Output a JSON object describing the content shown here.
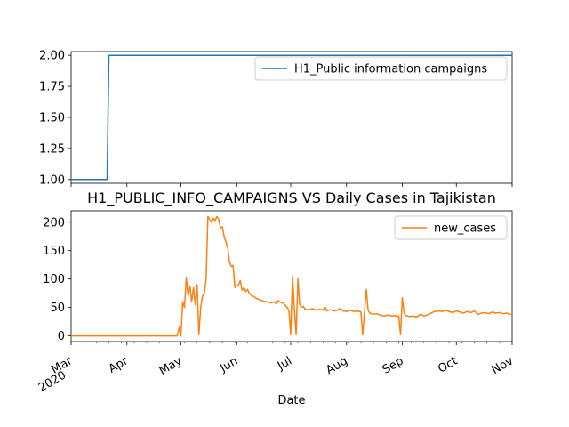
{
  "chart_data": [
    {
      "type": "line",
      "title": "",
      "xlabel": "",
      "ylabel": "",
      "ylim": [
        0.97,
        2.03
      ],
      "yticks": [
        "1.00",
        "1.25",
        "1.50",
        "1.75",
        "2.00"
      ],
      "legend_position": "top-right",
      "grid": false,
      "series": [
        {
          "name": "H1_Public information campaigns",
          "color": "#1f77b4",
          "points": [
            [
              "2020-03-01",
              1
            ],
            [
              "2020-03-21",
              1
            ],
            [
              "2020-03-22",
              2
            ],
            [
              "2020-11-01",
              2
            ]
          ]
        }
      ]
    },
    {
      "type": "line",
      "title": "H1_PUBLIC_INFO_CAMPAIGNS VS Daily Cases in Tajikistan",
      "xlabel": "Date",
      "ylabel": "",
      "ylim": [
        -10,
        220
      ],
      "yticks": [
        "0",
        "50",
        "100",
        "150",
        "200"
      ],
      "x_tick_labels": [
        {
          "date": "2020-03-01",
          "lines": [
            "Mar",
            "2020"
          ]
        },
        {
          "date": "2020-04-01",
          "lines": [
            "Apr"
          ]
        },
        {
          "date": "2020-05-01",
          "lines": [
            "May"
          ]
        },
        {
          "date": "2020-06-01",
          "lines": [
            "Jun"
          ]
        },
        {
          "date": "2020-07-01",
          "lines": [
            "Jul"
          ]
        },
        {
          "date": "2020-08-01",
          "lines": [
            "Aug"
          ]
        },
        {
          "date": "2020-09-01",
          "lines": [
            "Sep"
          ]
        },
        {
          "date": "2020-10-01",
          "lines": [
            "Oct"
          ]
        },
        {
          "date": "2020-11-01",
          "lines": [
            "Nov"
          ]
        }
      ],
      "legend_position": "top-right",
      "grid": false,
      "series": [
        {
          "name": "new_cases",
          "color": "#ff7f0e",
          "points": [
            [
              "2020-03-01",
              0
            ],
            [
              "2020-04-29",
              0
            ],
            [
              "2020-04-30",
              15
            ],
            [
              "2020-05-01",
              0
            ],
            [
              "2020-05-02",
              60
            ],
            [
              "2020-05-03",
              50
            ],
            [
              "2020-05-04",
              103
            ],
            [
              "2020-05-05",
              70
            ],
            [
              "2020-05-06",
              88
            ],
            [
              "2020-05-07",
              60
            ],
            [
              "2020-05-08",
              85
            ],
            [
              "2020-05-09",
              55
            ],
            [
              "2020-05-10",
              90
            ],
            [
              "2020-05-11",
              2
            ],
            [
              "2020-05-12",
              50
            ],
            [
              "2020-05-13",
              70
            ],
            [
              "2020-05-14",
              75
            ],
            [
              "2020-05-15",
              100
            ],
            [
              "2020-05-16",
              210
            ],
            [
              "2020-05-17",
              205
            ],
            [
              "2020-05-18",
              200
            ],
            [
              "2020-05-19",
              207
            ],
            [
              "2020-05-20",
              203
            ],
            [
              "2020-05-21",
              210
            ],
            [
              "2020-05-22",
              205
            ],
            [
              "2020-05-23",
              190
            ],
            [
              "2020-05-24",
              192
            ],
            [
              "2020-05-25",
              175
            ],
            [
              "2020-05-26",
              165
            ],
            [
              "2020-05-27",
              155
            ],
            [
              "2020-05-28",
              130
            ],
            [
              "2020-05-29",
              122
            ],
            [
              "2020-05-30",
              124
            ],
            [
              "2020-05-31",
              85
            ],
            [
              "2020-06-01",
              88
            ],
            [
              "2020-06-02",
              90
            ],
            [
              "2020-06-03",
              97
            ],
            [
              "2020-06-04",
              80
            ],
            [
              "2020-06-05",
              85
            ],
            [
              "2020-06-06",
              78
            ],
            [
              "2020-06-07",
              82
            ],
            [
              "2020-06-08",
              75
            ],
            [
              "2020-06-09",
              72
            ],
            [
              "2020-06-10",
              70
            ],
            [
              "2020-06-12",
              66
            ],
            [
              "2020-06-14",
              63
            ],
            [
              "2020-06-16",
              61
            ],
            [
              "2020-06-18",
              60
            ],
            [
              "2020-06-20",
              58
            ],
            [
              "2020-06-22",
              60
            ],
            [
              "2020-06-23",
              56
            ],
            [
              "2020-06-24",
              62
            ],
            [
              "2020-06-25",
              60
            ],
            [
              "2020-06-27",
              57
            ],
            [
              "2020-06-29",
              50
            ],
            [
              "2020-06-30",
              45
            ],
            [
              "2020-07-01",
              2
            ],
            [
              "2020-07-02",
              105
            ],
            [
              "2020-07-03",
              50
            ],
            [
              "2020-07-04",
              2
            ],
            [
              "2020-07-05",
              100
            ],
            [
              "2020-07-06",
              55
            ],
            [
              "2020-07-07",
              50
            ],
            [
              "2020-07-08",
              52
            ],
            [
              "2020-07-09",
              47
            ],
            [
              "2020-07-11",
              46
            ],
            [
              "2020-07-13",
              48
            ],
            [
              "2020-07-15",
              45
            ],
            [
              "2020-07-17",
              47
            ],
            [
              "2020-07-19",
              45
            ],
            [
              "2020-07-20",
              51
            ],
            [
              "2020-07-21",
              44
            ],
            [
              "2020-07-23",
              46
            ],
            [
              "2020-07-25",
              44
            ],
            [
              "2020-07-27",
              45
            ],
            [
              "2020-07-28",
              48
            ],
            [
              "2020-07-30",
              44
            ],
            [
              "2020-08-01",
              43
            ],
            [
              "2020-08-03",
              45
            ],
            [
              "2020-08-05",
              43
            ],
            [
              "2020-08-07",
              44
            ],
            [
              "2020-08-09",
              42
            ],
            [
              "2020-08-10",
              2
            ],
            [
              "2020-08-11",
              42
            ],
            [
              "2020-08-12",
              82
            ],
            [
              "2020-08-13",
              45
            ],
            [
              "2020-08-14",
              40
            ],
            [
              "2020-08-16",
              38
            ],
            [
              "2020-08-18",
              39
            ],
            [
              "2020-08-20",
              36
            ],
            [
              "2020-08-22",
              35
            ],
            [
              "2020-08-24",
              37
            ],
            [
              "2020-08-26",
              35
            ],
            [
              "2020-08-28",
              36
            ],
            [
              "2020-08-29",
              34
            ],
            [
              "2020-08-30",
              35
            ],
            [
              "2020-08-31",
              2
            ],
            [
              "2020-09-01",
              67
            ],
            [
              "2020-09-02",
              40
            ],
            [
              "2020-09-03",
              36
            ],
            [
              "2020-09-05",
              34
            ],
            [
              "2020-09-07",
              35
            ],
            [
              "2020-09-09",
              33
            ],
            [
              "2020-09-11",
              38
            ],
            [
              "2020-09-13",
              35
            ],
            [
              "2020-09-15",
              37
            ],
            [
              "2020-09-17",
              40
            ],
            [
              "2020-09-19",
              43
            ],
            [
              "2020-09-21",
              44
            ],
            [
              "2020-09-23",
              43
            ],
            [
              "2020-09-25",
              45
            ],
            [
              "2020-09-27",
              43
            ],
            [
              "2020-09-29",
              41
            ],
            [
              "2020-10-01",
              44
            ],
            [
              "2020-10-03",
              42
            ],
            [
              "2020-10-05",
              40
            ],
            [
              "2020-10-07",
              43
            ],
            [
              "2020-10-09",
              41
            ],
            [
              "2020-10-11",
              44
            ],
            [
              "2020-10-13",
              38
            ],
            [
              "2020-10-15",
              40
            ],
            [
              "2020-10-17",
              41
            ],
            [
              "2020-10-19",
              39
            ],
            [
              "2020-10-21",
              42
            ],
            [
              "2020-10-23",
              40
            ],
            [
              "2020-10-25",
              41
            ],
            [
              "2020-10-27",
              39
            ],
            [
              "2020-10-29",
              40
            ],
            [
              "2020-10-31",
              38
            ],
            [
              "2020-11-01",
              37
            ]
          ]
        }
      ]
    }
  ]
}
